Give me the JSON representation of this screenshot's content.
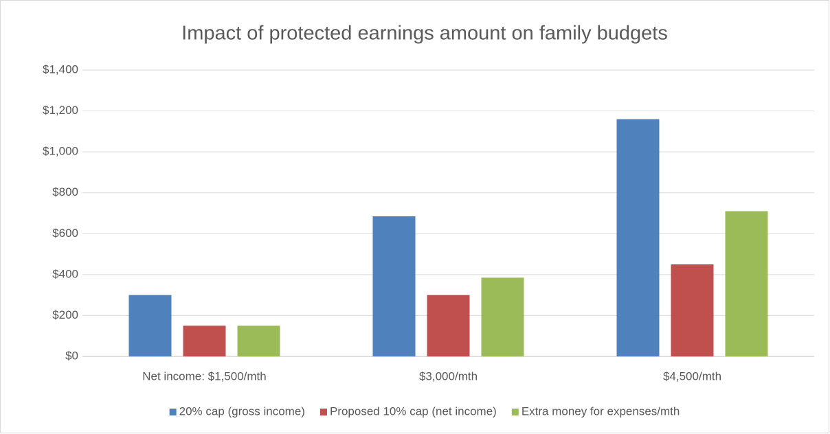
{
  "chart_data": {
    "type": "bar",
    "title": "Impact of protected earnings amount on family budgets",
    "categories": [
      "Net income: $1,500/mth",
      "$3,000/mth",
      "$4,500/mth"
    ],
    "series": [
      {
        "name": "20% cap (gross income)",
        "color": "#4f81bd",
        "values": [
          300,
          685,
          1160
        ]
      },
      {
        "name": "Proposed 10% cap (net income)",
        "color": "#c0504d",
        "values": [
          150,
          300,
          450
        ]
      },
      {
        "name": "Extra money for expenses/mth",
        "color": "#9bbb59",
        "values": [
          150,
          385,
          710
        ]
      }
    ],
    "ylim": [
      0,
      1400
    ],
    "yticks": [
      {
        "value": 0,
        "label": "$0"
      },
      {
        "value": 200,
        "label": "$200"
      },
      {
        "value": 400,
        "label": "$400"
      },
      {
        "value": 600,
        "label": "$600"
      },
      {
        "value": 800,
        "label": "$800"
      },
      {
        "value": 1000,
        "label": "$1,000"
      },
      {
        "value": 1200,
        "label": "$1,200"
      },
      {
        "value": 1400,
        "label": "$1,400"
      }
    ],
    "grid": true,
    "legend": "bottom"
  }
}
